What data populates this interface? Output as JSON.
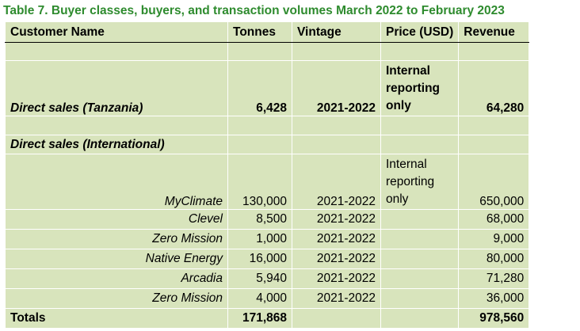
{
  "title": "Table 7. Buyer classes, buyers, and transaction volumes March 2022 to February 2023",
  "headers": {
    "customer": "Customer Name",
    "tonnes": "Tonnes",
    "vintage": "Vintage",
    "price": "Price (USD)",
    "revenue": "Revenue"
  },
  "tanzania": {
    "name": "Direct sales (Tanzania)",
    "tonnes": "6,428",
    "vintage": "2021-2022",
    "price": "Internal reporting only",
    "revenue": "64,280"
  },
  "international": {
    "label": "Direct sales (International)",
    "rows": [
      {
        "name": "MyClimate",
        "tonnes": "130,000",
        "vintage": "2021-2022",
        "price": "Internal reporting only",
        "revenue": "650,000"
      },
      {
        "name": "Clevel",
        "tonnes": "8,500",
        "vintage": "2021-2022",
        "price": "",
        "revenue": "68,000"
      },
      {
        "name": "Zero Mission",
        "tonnes": "1,000",
        "vintage": "2021-2022",
        "price": "",
        "revenue": "9,000"
      },
      {
        "name": "Native Energy",
        "tonnes": "16,000",
        "vintage": "2021-2022",
        "price": "",
        "revenue": "80,000"
      },
      {
        "name": "Arcadia",
        "tonnes": "5,940",
        "vintage": "2021-2022",
        "price": "",
        "revenue": "71,280"
      },
      {
        "name": "Zero Mission",
        "tonnes": "4,000",
        "vintage": "2021-2022",
        "price": "",
        "revenue": "36,000"
      }
    ]
  },
  "totals": {
    "label": "Totals",
    "tonnes": "171,868",
    "revenue": "978,560"
  },
  "colors": {
    "title": "#2e8b2e",
    "table_fill": "#d8e4bc"
  }
}
